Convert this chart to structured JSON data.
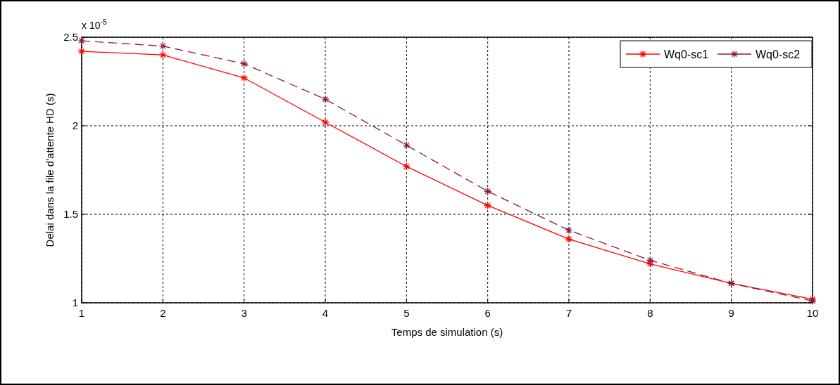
{
  "chart_data": {
    "type": "line",
    "xlabel": "Temps de simulation (s)",
    "ylabel": "Delai dans la file d'attente HD (s)",
    "annotations": [
      "x 10$^{-5}$"
    ],
    "x": [
      1,
      2,
      3,
      4,
      5,
      6,
      7,
      8,
      9,
      10
    ],
    "series": [
      {
        "name": "Wq0-sc1",
        "color": "#ff0000",
        "line_style": "solid",
        "values": [
          2.42,
          2.4,
          2.27,
          2.02,
          1.77,
          1.55,
          1.36,
          1.22,
          1.11,
          1.02
        ]
      },
      {
        "name": "Wq0-sc2",
        "color": "#8b1a3a",
        "line_style": "dashed",
        "values": [
          2.48,
          2.45,
          2.35,
          2.15,
          1.89,
          1.63,
          1.41,
          1.24,
          1.11,
          1.01
        ]
      }
    ],
    "xlim": [
      1,
      10
    ],
    "xticks": [
      1,
      2,
      3,
      4,
      5,
      6,
      7,
      8,
      9,
      10
    ],
    "ylim": [
      1,
      2.5
    ],
    "yticks": [
      1,
      1.5,
      2,
      2.5
    ],
    "grid": true,
    "legend": "top right",
    "marker": "cross"
  }
}
